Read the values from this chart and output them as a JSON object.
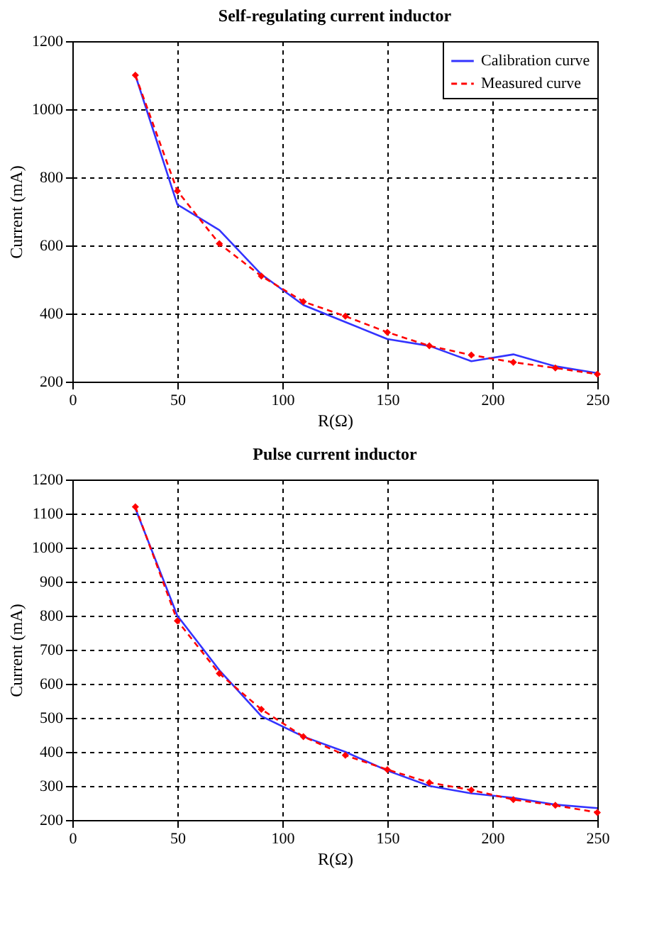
{
  "chart_data": [
    {
      "type": "line",
      "title": "Self-regulating current inductor",
      "xlabel": "R(Ω)",
      "ylabel": "Current (mA)",
      "x": [
        30,
        50,
        70,
        90,
        110,
        130,
        150,
        170,
        190,
        210,
        230,
        250
      ],
      "xlim": [
        0,
        250
      ],
      "xticks": [
        0,
        50,
        100,
        150,
        200,
        250
      ],
      "ylim": [
        200,
        1200
      ],
      "yticks": [
        200,
        400,
        600,
        800,
        1000,
        1200
      ],
      "grid": true,
      "legend": "top right",
      "series": [
        {
          "name": "Calibration curve",
          "color": "#3333ff",
          "line_style": "solid",
          "marker": "none",
          "values": [
            1100,
            720,
            645,
            515,
            425,
            375,
            325,
            305,
            260,
            280,
            245,
            225
          ]
        },
        {
          "name": "Measured curve",
          "color": "#ff0000",
          "line_style": "dashed",
          "marker": "diamond",
          "values": [
            1100,
            760,
            605,
            510,
            435,
            392,
            345,
            305,
            278,
            257,
            240,
            222
          ]
        }
      ]
    },
    {
      "type": "line",
      "title": "Pulse current inductor",
      "xlabel": "R(Ω)",
      "ylabel": "Current (mA)",
      "x": [
        30,
        50,
        70,
        90,
        110,
        130,
        150,
        170,
        190,
        210,
        230,
        250
      ],
      "xlim": [
        0,
        250
      ],
      "xticks": [
        0,
        50,
        100,
        150,
        200,
        250
      ],
      "ylim": [
        200,
        1200
      ],
      "yticks": [
        200,
        300,
        400,
        500,
        600,
        700,
        800,
        900,
        1000,
        1100,
        1200
      ],
      "grid": true,
      "legend": "top right",
      "series": [
        {
          "name": "Calibration curve",
          "color": "#3333ff",
          "line_style": "solid",
          "marker": "none",
          "values": [
            1115,
            800,
            640,
            505,
            445,
            400,
            345,
            300,
            278,
            265,
            245,
            235
          ]
        },
        {
          "name": "Measured curve",
          "color": "#ff0000",
          "line_style": "dashed",
          "marker": "diamond",
          "values": [
            1120,
            785,
            630,
            525,
            445,
            390,
            348,
            310,
            288,
            260,
            243,
            222
          ]
        }
      ]
    }
  ]
}
